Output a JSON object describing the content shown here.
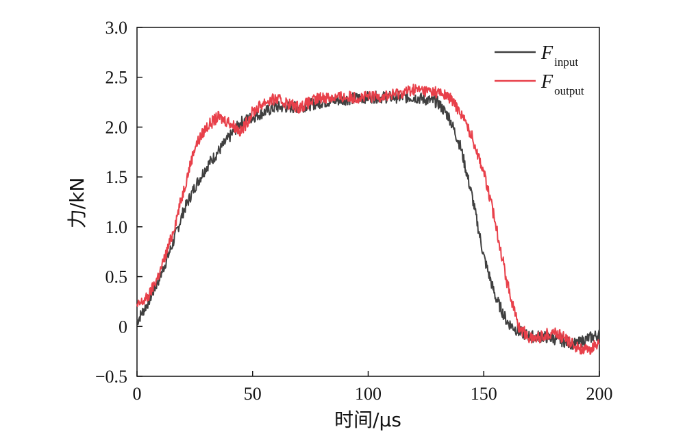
{
  "chart_data": {
    "type": "line",
    "xlabel": "时间/μs",
    "ylabel": "力/kN",
    "xlim": [
      0,
      200
    ],
    "ylim": [
      -0.5,
      3.0
    ],
    "xticks": [
      "0",
      "50",
      "100",
      "150",
      "200"
    ],
    "yticks": [
      "−0.5",
      "0",
      "0.5",
      "1.0",
      "1.5",
      "2.0",
      "2.5",
      "3.0"
    ],
    "grid": false,
    "legend_position": "top-right",
    "series": [
      {
        "name": "F",
        "subscript": "input",
        "color": "#404040",
        "x": [
          0,
          5,
          10,
          15,
          20,
          25,
          30,
          35,
          40,
          45,
          50,
          55,
          60,
          70,
          80,
          90,
          100,
          110,
          120,
          130,
          135,
          140,
          145,
          150,
          155,
          160,
          165,
          170,
          175,
          180,
          185,
          190,
          195,
          200
        ],
        "y": [
          0.05,
          0.25,
          0.5,
          0.8,
          1.15,
          1.4,
          1.6,
          1.75,
          1.9,
          2.05,
          2.1,
          2.15,
          2.2,
          2.2,
          2.25,
          2.28,
          2.3,
          2.3,
          2.3,
          2.25,
          2.1,
          1.8,
          1.3,
          0.7,
          0.3,
          0.05,
          -0.05,
          -0.1,
          -0.1,
          -0.12,
          -0.15,
          -0.18,
          -0.12,
          -0.08
        ]
      },
      {
        "name": "F",
        "subscript": "output",
        "color": "#e8404a",
        "x": [
          0,
          5,
          10,
          15,
          20,
          25,
          30,
          35,
          40,
          45,
          50,
          55,
          60,
          70,
          80,
          90,
          100,
          110,
          120,
          130,
          135,
          140,
          145,
          150,
          155,
          160,
          165,
          170,
          175,
          180,
          185,
          190,
          195,
          200
        ],
        "y": [
          0.2,
          0.3,
          0.55,
          0.9,
          1.35,
          1.8,
          2.0,
          2.1,
          2.05,
          1.95,
          2.15,
          2.25,
          2.28,
          2.2,
          2.3,
          2.3,
          2.3,
          2.32,
          2.38,
          2.35,
          2.3,
          2.15,
          1.9,
          1.55,
          1.05,
          0.45,
          0.0,
          -0.12,
          -0.1,
          -0.05,
          -0.12,
          -0.2,
          -0.25,
          -0.15
        ]
      }
    ]
  }
}
